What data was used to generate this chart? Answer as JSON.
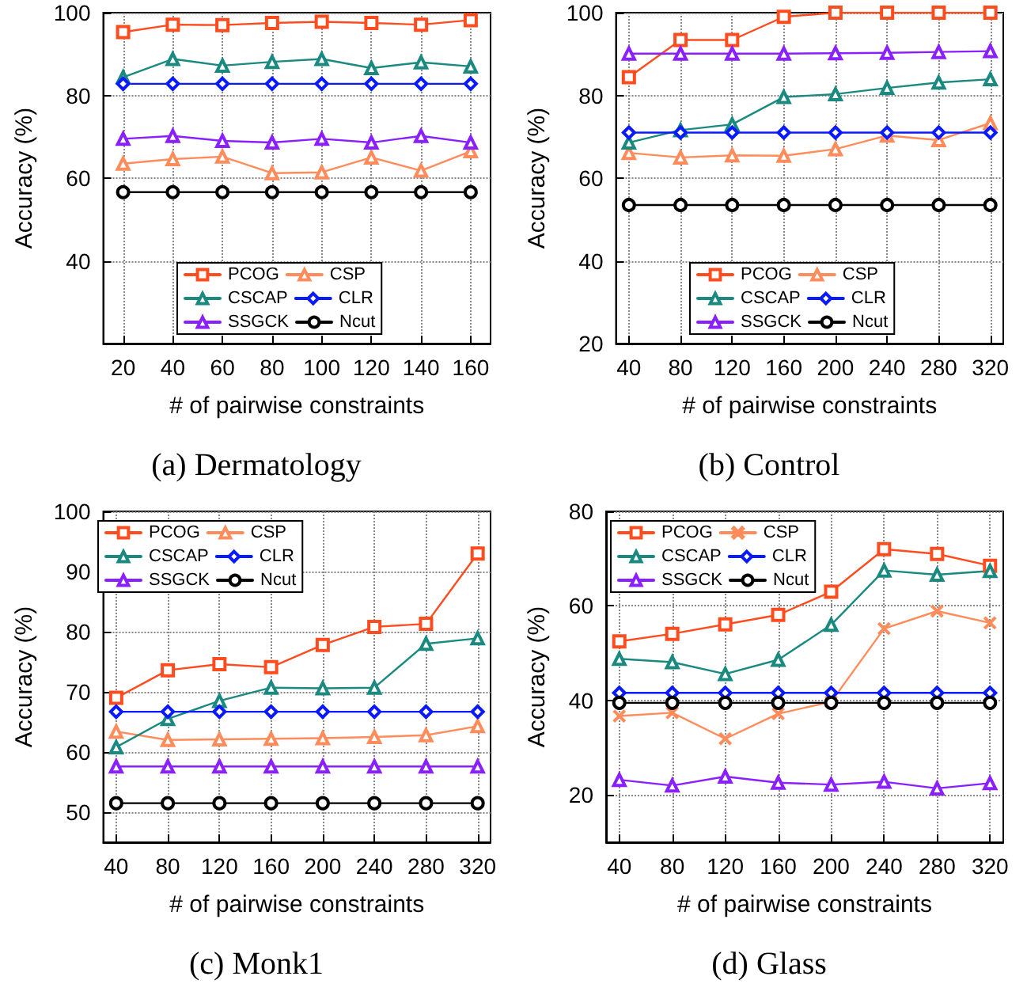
{
  "chart_data": [
    {
      "type": "line",
      "title": "(a) Dermatology",
      "xlabel": "# of pairwise constraints",
      "ylabel": "Accuracy (%)",
      "x": [
        20,
        40,
        60,
        80,
        100,
        120,
        140,
        160
      ],
      "xlim": [
        12,
        168
      ],
      "xticks": [
        20,
        40,
        60,
        80,
        100,
        120,
        140,
        160
      ],
      "ylim": [
        20,
        100
      ],
      "yticks": [
        40,
        60,
        80,
        100
      ],
      "grid": true,
      "legend": "bottom",
      "line_style": "solid",
      "series": [
        {
          "name": "PCOG",
          "color": "#ff4c1f",
          "marker": "square",
          "values": [
            95.3,
            97.1,
            97.0,
            97.5,
            97.8,
            97.5,
            97.1,
            98.2
          ]
        },
        {
          "name": "CSP",
          "color": "#ff8c5a",
          "marker": "triangle",
          "values": [
            63.5,
            64.6,
            65.2,
            61.2,
            61.4,
            65.0,
            61.8,
            66.5
          ]
        },
        {
          "name": "CSCAP",
          "color": "#1a8a80",
          "marker": "triangle",
          "values": [
            84.4,
            88.8,
            87.2,
            88.1,
            88.8,
            86.6,
            88.0,
            87.0
          ]
        },
        {
          "name": "CLR",
          "color": "#0a1aff",
          "marker": "diamond",
          "values": [
            82.8,
            82.8,
            82.8,
            82.8,
            82.8,
            82.8,
            82.8,
            82.8
          ]
        },
        {
          "name": "SSGCK",
          "color": "#8a1fff",
          "marker": "triangle",
          "values": [
            69.5,
            70.2,
            69.0,
            68.6,
            69.5,
            68.6,
            70.2,
            68.6
          ]
        },
        {
          "name": "Ncut",
          "color": "#000000",
          "marker": "circle",
          "values": [
            56.6,
            56.6,
            56.6,
            56.6,
            56.6,
            56.6,
            56.6,
            56.6
          ]
        }
      ]
    },
    {
      "type": "line",
      "title": "(b) Control",
      "xlabel": "# of pairwise constraints",
      "ylabel": "Accuracy (%)",
      "x": [
        40,
        80,
        120,
        160,
        200,
        240,
        280,
        320
      ],
      "xlim": [
        30,
        330
      ],
      "xticks": [
        40,
        80,
        120,
        160,
        200,
        240,
        280,
        320
      ],
      "ylim": [
        20,
        100
      ],
      "yticks": [
        20,
        40,
        60,
        80,
        100
      ],
      "grid": true,
      "legend": "bottom",
      "line_style": "solid",
      "series": [
        {
          "name": "PCOG",
          "color": "#ff4c1f",
          "marker": "square",
          "values": [
            84.4,
            93.4,
            93.4,
            99.0,
            100,
            100,
            100,
            100
          ]
        },
        {
          "name": "CSP",
          "color": "#ff8c5a",
          "marker": "triangle",
          "values": [
            66.1,
            65.0,
            65.5,
            65.4,
            67.0,
            70.3,
            69.2,
            73.3
          ]
        },
        {
          "name": "CSCAP",
          "color": "#1a8a80",
          "marker": "triangle",
          "values": [
            68.6,
            71.6,
            73.0,
            79.6,
            80.3,
            81.8,
            83.1,
            83.9
          ]
        },
        {
          "name": "CLR",
          "color": "#0a1aff",
          "marker": "diamond",
          "values": [
            71.0,
            71.0,
            71.0,
            71.0,
            71.0,
            71.0,
            71.0,
            71.0
          ]
        },
        {
          "name": "SSGCK",
          "color": "#8a1fff",
          "marker": "triangle",
          "values": [
            90.1,
            90.1,
            90.1,
            90.1,
            90.2,
            90.3,
            90.5,
            90.7
          ]
        },
        {
          "name": "Ncut",
          "color": "#000000",
          "marker": "circle",
          "values": [
            53.5,
            53.5,
            53.5,
            53.5,
            53.5,
            53.5,
            53.5,
            53.5
          ]
        }
      ]
    },
    {
      "type": "line",
      "title": "(c) Monk1",
      "xlabel": "# of pairwise constraints",
      "ylabel": "Accuracy (%)",
      "x": [
        40,
        80,
        120,
        160,
        200,
        240,
        280,
        320
      ],
      "xlim": [
        30,
        330
      ],
      "xticks": [
        40,
        80,
        120,
        160,
        200,
        240,
        280,
        320
      ],
      "ylim": [
        45,
        100
      ],
      "yticks": [
        50,
        60,
        70,
        80,
        90,
        100
      ],
      "grid": true,
      "legend": "top left",
      "line_style": "solid",
      "series": [
        {
          "name": "PCOG",
          "color": "#ff4c1f",
          "marker": "square",
          "values": [
            69.0,
            73.6,
            74.6,
            74.1,
            77.8,
            80.8,
            81.3,
            93.0
          ]
        },
        {
          "name": "CSP",
          "color": "#ff8c5a",
          "marker": "triangle",
          "values": [
            63.4,
            62.0,
            62.1,
            62.2,
            62.3,
            62.5,
            62.8,
            64.3
          ]
        },
        {
          "name": "CSCAP",
          "color": "#1a8a80",
          "marker": "triangle",
          "values": [
            60.8,
            65.5,
            68.5,
            70.7,
            70.6,
            70.7,
            78.0,
            78.9
          ]
        },
        {
          "name": "CLR",
          "color": "#0a1aff",
          "marker": "diamond",
          "values": [
            66.7,
            66.7,
            66.7,
            66.7,
            66.7,
            66.7,
            66.7,
            66.7
          ]
        },
        {
          "name": "SSGCK",
          "color": "#8a1fff",
          "marker": "triangle",
          "values": [
            57.6,
            57.6,
            57.6,
            57.6,
            57.6,
            57.6,
            57.6,
            57.6
          ]
        },
        {
          "name": "Ncut",
          "color": "#000000",
          "marker": "circle",
          "values": [
            51.5,
            51.5,
            51.5,
            51.5,
            51.5,
            51.5,
            51.5,
            51.5
          ]
        }
      ]
    },
    {
      "type": "line",
      "title": "(d) Glass",
      "xlabel": "# of pairwise constraints",
      "ylabel": "Accuracy (%)",
      "x": [
        40,
        80,
        120,
        160,
        200,
        240,
        280,
        320
      ],
      "xlim": [
        30,
        330
      ],
      "xticks": [
        40,
        80,
        120,
        160,
        200,
        240,
        280,
        320
      ],
      "ylim": [
        10,
        80
      ],
      "yticks": [
        20,
        40,
        60,
        80
      ],
      "grid": true,
      "legend": "top left",
      "line_style": "solid",
      "series": [
        {
          "name": "PCOG",
          "color": "#ff4c1f",
          "marker": "square",
          "values": [
            52.5,
            54.1,
            56.1,
            58.1,
            63.0,
            72.0,
            71.0,
            68.5
          ]
        },
        {
          "name": "CSP",
          "color": "#ff8c5a",
          "marker": "cross",
          "values": [
            36.7,
            37.4,
            31.9,
            37.2,
            39.7,
            55.2,
            58.9,
            56.4
          ]
        },
        {
          "name": "CSCAP",
          "color": "#1a8a80",
          "marker": "triangle",
          "values": [
            48.8,
            48.1,
            45.6,
            48.6,
            56.0,
            67.5,
            66.6,
            67.4
          ]
        },
        {
          "name": "CLR",
          "color": "#0a1aff",
          "marker": "diamond",
          "values": [
            41.6,
            41.6,
            41.6,
            41.6,
            41.6,
            41.6,
            41.6,
            41.6
          ]
        },
        {
          "name": "SSGCK",
          "color": "#8a1fff",
          "marker": "triangle",
          "values": [
            23.2,
            22.0,
            23.9,
            22.6,
            22.2,
            22.8,
            21.4,
            22.5
          ]
        },
        {
          "name": "Ncut",
          "color": "#000000",
          "marker": "circle",
          "values": [
            39.5,
            39.5,
            39.5,
            39.5,
            39.5,
            39.5,
            39.5,
            39.5
          ]
        }
      ]
    }
  ]
}
